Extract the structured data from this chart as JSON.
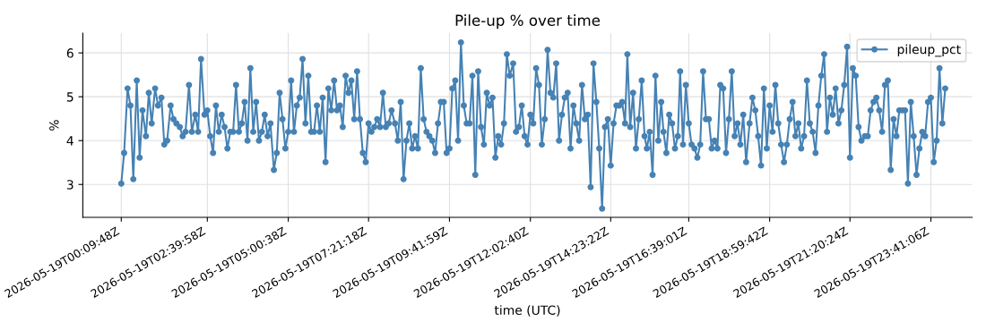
{
  "chart_data": {
    "type": "line",
    "title": "Pile-up % over time",
    "xlabel": "time (UTC)",
    "ylabel": "%",
    "series": [
      {
        "name": "pileup_pct",
        "color": "#4682b4",
        "x": [
          "2026-05-19T00:10",
          "2026-05-19T00:15",
          "2026-05-19T00:21",
          "2026-05-19T00:26",
          "2026-05-19T00:31",
          "2026-05-19T00:37",
          "2026-05-19T00:42",
          "2026-05-19T00:47",
          "2026-05-19T00:53",
          "2026-05-19T00:58",
          "2026-05-19T01:03",
          "2026-05-19T01:09",
          "2026-05-19T01:14",
          "2026-05-19T01:20",
          "2026-05-19T01:25",
          "2026-05-19T01:30",
          "2026-05-19T01:36",
          "2026-05-19T01:41",
          "2026-05-19T01:46",
          "2026-05-19T01:52",
          "2026-05-19T01:57",
          "2026-05-19T02:02",
          "2026-05-19T02:08",
          "2026-05-19T02:13",
          "2026-05-19T02:19",
          "2026-05-19T02:24",
          "2026-05-19T02:29",
          "2026-05-19T02:35",
          "2026-05-19T02:40",
          "2026-05-19T02:45",
          "2026-05-19T02:50",
          "2026-05-19T02:55",
          "2026-05-19T03:00",
          "2026-05-19T03:05",
          "2026-05-19T03:10",
          "2026-05-19T03:15",
          "2026-05-19T03:20",
          "2026-05-19T03:25",
          "2026-05-19T03:30",
          "2026-05-19T03:35",
          "2026-05-19T03:40",
          "2026-05-19T03:45",
          "2026-05-19T03:50",
          "2026-05-19T03:55",
          "2026-05-19T04:00",
          "2026-05-19T04:05",
          "2026-05-19T04:10",
          "2026-05-19T04:15",
          "2026-05-19T04:20",
          "2026-05-19T04:25",
          "2026-05-19T04:30",
          "2026-05-19T04:36",
          "2026-05-19T04:41",
          "2026-05-19T04:46",
          "2026-05-19T04:51",
          "2026-05-19T04:56",
          "2026-05-19T05:01",
          "2026-05-19T05:06",
          "2026-05-19T05:11",
          "2026-05-19T05:16",
          "2026-05-19T05:21",
          "2026-05-19T05:26",
          "2026-05-19T05:31",
          "2026-05-19T05:36",
          "2026-05-19T05:41",
          "2026-05-19T05:46",
          "2026-05-19T05:51",
          "2026-05-19T05:56",
          "2026-05-19T06:01",
          "2026-05-19T06:06",
          "2026-05-19T06:11",
          "2026-05-19T06:16",
          "2026-05-19T06:21",
          "2026-05-19T06:26",
          "2026-05-19T06:31",
          "2026-05-19T06:36",
          "2026-05-19T06:41",
          "2026-05-19T06:46",
          "2026-05-19T06:51",
          "2026-05-19T06:56",
          "2026-05-19T07:01",
          "2026-05-19T07:06",
          "2026-05-19T07:11",
          "2026-05-19T07:16",
          "2026-05-19T07:21",
          "2026-05-19T07:26",
          "2026-05-19T07:31",
          "2026-05-19T07:36",
          "2026-05-19T07:41",
          "2026-05-19T07:46",
          "2026-05-19T07:51",
          "2026-05-19T07:56",
          "2026-05-19T08:01",
          "2026-05-19T08:07",
          "2026-05-19T08:12",
          "2026-05-19T08:17",
          "2026-05-19T08:22",
          "2026-05-19T08:27",
          "2026-05-19T08:32",
          "2026-05-19T08:37",
          "2026-05-19T08:42",
          "2026-05-19T08:47",
          "2026-05-19T08:52",
          "2026-05-19T08:57",
          "2026-05-19T09:02",
          "2026-05-19T09:07",
          "2026-05-19T09:12",
          "2026-05-19T09:17",
          "2026-05-19T09:22",
          "2026-05-19T09:27",
          "2026-05-19T09:32",
          "2026-05-19T09:37",
          "2026-05-19T09:42",
          "2026-05-19T09:47",
          "2026-05-19T09:52",
          "2026-05-19T09:57",
          "2026-05-19T10:02",
          "2026-05-19T10:07",
          "2026-05-19T10:12",
          "2026-05-19T10:17",
          "2026-05-19T10:22",
          "2026-05-19T10:27",
          "2026-05-19T10:32",
          "2026-05-19T10:37",
          "2026-05-19T10:42",
          "2026-05-19T10:47",
          "2026-05-19T10:52",
          "2026-05-19T10:57",
          "2026-05-19T11:02",
          "2026-05-19T11:07",
          "2026-05-19T11:12",
          "2026-05-19T11:17",
          "2026-05-19T11:22",
          "2026-05-19T11:27",
          "2026-05-19T11:33",
          "2026-05-19T11:38",
          "2026-05-19T11:43",
          "2026-05-19T11:48",
          "2026-05-19T11:53",
          "2026-05-19T11:58",
          "2026-05-19T12:03",
          "2026-05-19T12:08",
          "2026-05-19T12:13",
          "2026-05-19T12:18",
          "2026-05-19T12:23",
          "2026-05-19T12:28",
          "2026-05-19T12:33",
          "2026-05-19T12:38",
          "2026-05-19T12:43",
          "2026-05-19T12:48",
          "2026-05-19T12:53",
          "2026-05-19T12:58",
          "2026-05-19T13:03",
          "2026-05-19T13:08",
          "2026-05-19T13:13",
          "2026-05-19T13:18",
          "2026-05-19T13:23",
          "2026-05-19T13:28",
          "2026-05-19T13:33",
          "2026-05-19T13:38",
          "2026-05-19T13:43",
          "2026-05-19T13:48",
          "2026-05-19T13:53",
          "2026-05-19T13:58",
          "2026-05-19T14:03",
          "2026-05-19T14:08",
          "2026-05-19T14:13",
          "2026-05-19T14:18",
          "2026-05-19T14:23",
          "2026-05-19T14:28",
          "2026-05-19T14:33",
          "2026-05-19T14:38",
          "2026-05-19T14:43",
          "2026-05-19T14:48",
          "2026-05-19T14:52",
          "2026-05-19T14:57",
          "2026-05-19T15:02",
          "2026-05-19T15:07",
          "2026-05-19T15:12",
          "2026-05-19T15:17",
          "2026-05-19T15:22",
          "2026-05-19T15:26",
          "2026-05-19T15:31",
          "2026-05-19T15:36",
          "2026-05-19T15:41",
          "2026-05-19T15:46",
          "2026-05-19T15:51",
          "2026-05-19T15:55",
          "2026-05-19T16:00",
          "2026-05-19T16:05",
          "2026-05-19T16:10",
          "2026-05-19T16:15",
          "2026-05-19T16:20",
          "2026-05-19T16:24",
          "2026-05-19T16:29",
          "2026-05-19T16:34",
          "2026-05-19T16:39",
          "2026-05-19T16:44",
          "2026-05-19T16:49",
          "2026-05-19T16:54",
          "2026-05-19T16:59",
          "2026-05-19T17:04",
          "2026-05-19T17:09",
          "2026-05-19T17:14",
          "2026-05-19T17:19",
          "2026-05-19T17:24",
          "2026-05-19T17:29",
          "2026-05-19T17:34",
          "2026-05-19T17:39",
          "2026-05-19T17:44",
          "2026-05-19T17:49",
          "2026-05-19T17:54",
          "2026-05-19T17:59",
          "2026-05-19T18:04",
          "2026-05-19T18:09",
          "2026-05-19T18:14",
          "2026-05-19T18:19",
          "2026-05-19T18:25",
          "2026-05-19T18:30",
          "2026-05-19T18:35",
          "2026-05-19T18:40",
          "2026-05-19T18:45",
          "2026-05-19T18:50",
          "2026-05-19T18:55",
          "2026-05-19T19:00",
          "2026-05-19T19:05",
          "2026-05-19T19:10",
          "2026-05-19T19:15",
          "2026-05-19T19:20",
          "2026-05-19T19:25",
          "2026-05-19T19:30",
          "2026-05-19T19:35",
          "2026-05-19T19:40",
          "2026-05-19T19:45",
          "2026-05-19T19:50",
          "2026-05-19T19:55",
          "2026-05-19T20:00",
          "2026-05-19T20:05",
          "2026-05-19T20:10",
          "2026-05-19T20:15",
          "2026-05-19T20:20",
          "2026-05-19T20:25",
          "2026-05-19T20:30",
          "2026-05-19T20:35",
          "2026-05-19T20:40",
          "2026-05-19T20:45",
          "2026-05-19T20:50",
          "2026-05-19T20:55",
          "2026-05-19T21:00",
          "2026-05-19T21:05",
          "2026-05-19T21:10",
          "2026-05-19T21:15",
          "2026-05-19T21:20",
          "2026-05-19T21:25",
          "2026-05-19T21:30",
          "2026-05-19T21:35",
          "2026-05-19T21:40",
          "2026-05-19T21:46",
          "2026-05-19T21:51",
          "2026-05-19T21:56",
          "2026-05-19T22:01",
          "2026-05-19T22:06",
          "2026-05-19T22:11",
          "2026-05-19T22:16",
          "2026-05-19T22:21",
          "2026-05-19T22:26",
          "2026-05-19T22:31",
          "2026-05-19T22:36",
          "2026-05-19T22:41",
          "2026-05-19T22:46",
          "2026-05-19T22:51",
          "2026-05-19T22:56",
          "2026-05-19T23:01",
          "2026-05-19T23:06",
          "2026-05-19T23:11",
          "2026-05-19T23:16",
          "2026-05-19T23:21",
          "2026-05-19T23:26",
          "2026-05-19T23:31",
          "2026-05-19T23:36",
          "2026-05-19T23:41",
          "2026-05-19T23:46",
          "2026-05-19T23:51",
          "2026-05-19T23:56",
          "2026-05-20T00:01",
          "2026-05-20T00:06"
        ],
        "values": [
          3.02,
          3.72,
          5.19,
          4.8,
          3.12,
          5.37,
          3.61,
          4.69,
          4.1,
          5.09,
          4.39,
          5.19,
          4.8,
          4.98,
          3.91,
          4.0,
          4.8,
          4.49,
          4.39,
          4.31,
          4.1,
          4.2,
          5.27,
          4.2,
          4.59,
          4.2,
          5.86,
          4.59,
          4.69,
          4.1,
          3.72,
          4.8,
          4.2,
          4.59,
          4.31,
          3.82,
          4.2,
          4.2,
          5.27,
          4.2,
          4.39,
          4.88,
          4.0,
          5.65,
          4.2,
          4.88,
          4.0,
          4.2,
          4.59,
          4.1,
          4.39,
          3.33,
          3.72,
          5.09,
          4.49,
          3.82,
          4.2,
          5.37,
          4.2,
          4.8,
          4.98,
          5.86,
          4.39,
          5.48,
          4.2,
          4.2,
          4.8,
          4.2,
          4.98,
          3.51,
          5.19,
          4.69,
          5.37,
          4.69,
          4.8,
          4.31,
          5.48,
          5.09,
          5.37,
          4.49,
          5.58,
          4.49,
          3.72,
          3.51,
          4.39,
          4.2,
          4.31,
          4.49,
          4.31,
          5.09,
          4.31,
          4.39,
          4.69,
          4.39,
          4.0,
          4.88,
          3.12,
          4.0,
          4.39,
          3.82,
          4.1,
          3.82,
          5.65,
          4.49,
          4.2,
          4.1,
          4.0,
          3.72,
          4.39,
          4.88,
          4.88,
          3.72,
          3.82,
          5.19,
          5.37,
          4.0,
          6.24,
          4.8,
          4.39,
          4.39,
          5.48,
          3.22,
          5.58,
          4.31,
          3.91,
          5.09,
          4.8,
          4.98,
          3.61,
          4.1,
          3.91,
          4.39,
          5.97,
          5.48,
          5.76,
          4.2,
          4.31,
          4.8,
          4.1,
          3.91,
          4.59,
          4.39,
          5.65,
          5.27,
          3.91,
          4.49,
          6.07,
          5.09,
          4.98,
          5.76,
          4.0,
          4.59,
          4.98,
          5.09,
          3.82,
          4.8,
          4.39,
          4.0,
          5.27,
          4.49,
          4.59,
          2.94,
          5.76,
          4.88,
          3.82,
          2.45,
          4.31,
          4.49,
          3.43,
          4.39,
          4.8,
          4.8,
          4.88,
          4.39,
          5.97,
          4.31,
          5.09,
          3.82,
          4.49,
          5.37,
          4.1,
          3.82,
          4.2,
          3.22,
          5.48,
          4.0,
          4.88,
          4.2,
          3.72,
          4.59,
          4.39,
          3.82,
          4.1,
          5.58,
          3.91,
          5.27,
          4.39,
          3.91,
          3.82,
          3.61,
          3.91,
          5.58,
          4.49,
          4.49,
          3.82,
          4.0,
          3.82,
          5.27,
          5.19,
          3.72,
          4.49,
          5.58,
          4.1,
          4.39,
          3.91,
          4.59,
          3.51,
          4.39,
          4.98,
          4.69,
          4.1,
          3.43,
          5.19,
          3.82,
          4.8,
          4.2,
          5.27,
          4.39,
          3.91,
          3.51,
          3.91,
          4.49,
          4.88,
          4.1,
          4.39,
          3.82,
          4.1,
          5.37,
          4.39,
          4.2,
          3.72,
          4.8,
          5.48,
          5.97,
          4.2,
          4.98,
          4.59,
          5.19,
          4.39,
          4.69,
          5.27,
          6.14,
          3.61,
          5.65,
          5.48,
          4.31,
          4.0,
          4.1,
          4.1,
          4.69,
          4.88,
          4.98,
          4.69,
          4.2,
          5.27,
          5.37,
          3.33,
          4.49,
          4.1,
          4.69,
          4.69,
          4.69,
          3.02,
          4.88,
          4.1,
          3.22,
          3.82,
          4.2,
          4.1,
          4.88,
          4.98,
          3.51,
          4.0,
          5.65,
          4.39,
          5.19
        ]
      }
    ],
    "xlim": [
      "2026-05-18T23:03",
      "2026-05-20T00:53"
    ],
    "xticks": [
      {
        "value": "2026-05-19T00:10",
        "label": "2026-05-19T00:09:48Z"
      },
      {
        "value": "2026-05-19T02:40",
        "label": "2026-05-19T02:39:58Z"
      },
      {
        "value": "2026-05-19T05:01",
        "label": "2026-05-19T05:00:38Z"
      },
      {
        "value": "2026-05-19T07:21",
        "label": "2026-05-19T07:21:18Z"
      },
      {
        "value": "2026-05-19T09:42",
        "label": "2026-05-19T09:41:59Z"
      },
      {
        "value": "2026-05-19T12:03",
        "label": "2026-05-19T12:02:40Z"
      },
      {
        "value": "2026-05-19T14:23",
        "label": "2026-05-19T14:23:22Z"
      },
      {
        "value": "2026-05-19T16:39",
        "label": "2026-05-19T16:39:01Z"
      },
      {
        "value": "2026-05-19T19:00",
        "label": "2026-05-19T18:59:42Z"
      },
      {
        "value": "2026-05-19T21:20",
        "label": "2026-05-19T21:20:24Z"
      },
      {
        "value": "2026-05-19T23:41",
        "label": "2026-05-19T23:41:06Z"
      }
    ],
    "ylim": [
      2.25,
      6.45
    ],
    "yticks": [
      3,
      4,
      5,
      6
    ],
    "grid": true,
    "legend": "top right",
    "marker": "circle",
    "line_style": "solid"
  }
}
